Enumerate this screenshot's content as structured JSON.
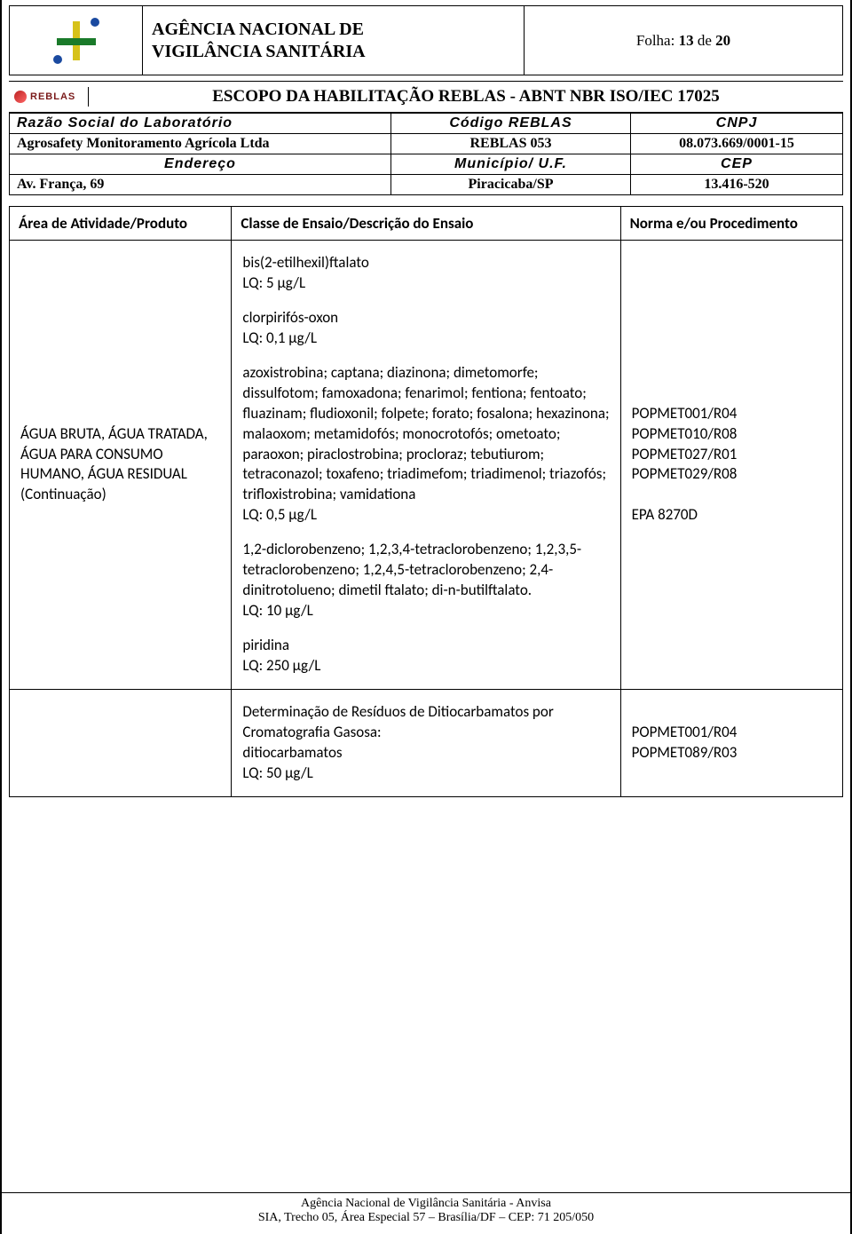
{
  "header": {
    "agency_line1": "AGÊNCIA NACIONAL DE",
    "agency_line2": "VIGILÂNCIA SANITÁRIA",
    "folha_prefix": "Folha: ",
    "folha_num": "13",
    "folha_mid": " de ",
    "folha_total": "20"
  },
  "reblas": {
    "logo_text": "REBLAS",
    "title": "ESCOPO DA HABILITAÇÃO REBLAS - ABNT NBR ISO/IEC 17025"
  },
  "meta": {
    "h_razao": "Razão Social do Laboratório",
    "h_codigo": "Código REBLAS",
    "h_cnpj": "CNPJ",
    "razao": "Agrosafety Monitoramento Agrícola Ltda",
    "codigo": "REBLAS 053",
    "cnpj": "08.073.669/0001-15",
    "h_endereco": "Endereço",
    "h_municipio": "Município/ U.F.",
    "h_cep": "CEP",
    "endereco": "Av. França, 69",
    "municipio": "Piracicaba/SP",
    "cep": "13.416-520"
  },
  "table": {
    "h_area": "Área de Atividade/Produto",
    "h_classe": "Classe de Ensaio/Descrição do Ensaio",
    "h_norma": "Norma e/ou Procedimento",
    "row1": {
      "area": "ÁGUA BRUTA, ÁGUA TRATADA, ÁGUA PARA CONSUMO HUMANO, ÁGUA RESIDUAL (Continuação)",
      "p1": "bis(2-etilhexil)ftalato\nLQ: 5 µg/L",
      "p2": "clorpirifós-oxon\nLQ: 0,1 µg/L",
      "p3": "azoxistrobina; captana; diazinona; dimetomorfe; dissulfotom; famoxadona; fenarimol; fentiona; fentoato; fluazinam; fludioxonil; folpete; forato; fosalona; hexazinona; malaoxom; metamidofós; monocrotofós; ometoato; paraoxon; piraclostrobina; procloraz; tebutiurom; tetraconazol; toxafeno; triadimefom; triadimenol; triazofós; trifloxistrobina; vamidationa\nLQ: 0,5 µg/L",
      "p4": "1,2-diclorobenzeno; 1,2,3,4-tetraclorobenzeno; 1,2,3,5-tetraclorobenzeno; 1,2,4,5-tetraclorobenzeno; 2,4-dinitrotolueno; dimetil ftalato; di-n-butilftalato.\nLQ: 10 µg/L",
      "p5": "piridina\nLQ: 250 µg/L",
      "norma": "POPMET001/R04\nPOPMET010/R08\nPOPMET027/R01\nPOPMET029/R08\n\nEPA 8270D"
    },
    "row2": {
      "ensaio": "Determinação de Resíduos de Ditiocarbamatos por Cromatografia Gasosa:\nditiocarbamatos\nLQ: 50 µg/L",
      "norma": "POPMET001/R04\nPOPMET089/R03"
    }
  },
  "footer": {
    "line1": "Agência Nacional de Vigilância Sanitária - Anvisa",
    "line2": "SIA, Trecho 05, Área Especial 57 – Brasília/DF – CEP: 71 205/050"
  }
}
